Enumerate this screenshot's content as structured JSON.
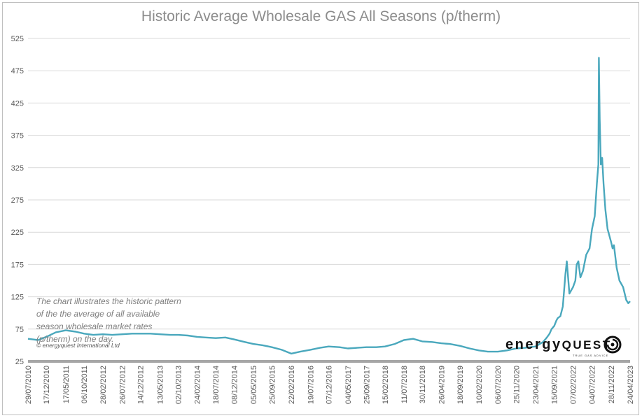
{
  "chart_data": {
    "type": "line",
    "title": "Historic Average Wholesale GAS All Seasons (p/therm)",
    "xlabel": "",
    "ylabel": "",
    "ylim": [
      25,
      525
    ],
    "y_ticks": [
      "25",
      "75",
      "125",
      "175",
      "225",
      "275",
      "325",
      "375",
      "425",
      "475",
      "525"
    ],
    "x_tick_labels": [
      "29/07/2010",
      "17/12/2010",
      "17/05/2011",
      "06/10/2011",
      "28/02/2012",
      "26/07/2012",
      "14/12/2012",
      "13/05/2013",
      "02/10/2013",
      "24/02/2014",
      "18/07/2014",
      "08/12/2014",
      "05/05/2015",
      "25/09/2015",
      "22/02/2016",
      "19/07/2016",
      "07/12/2016",
      "04/05/2017",
      "25/09/2017",
      "15/02/2018",
      "11/07/2018",
      "30/11/2018",
      "26/04/2019",
      "18/09/2019",
      "10/02/2020",
      "06/07/2020",
      "25/11/2020",
      "23/04/2021",
      "15/09/2021",
      "07/02/2022",
      "04/07/2022",
      "28/11/2022",
      "24/04/2023"
    ],
    "grid": true,
    "legend": "none",
    "series_color": "#4aa8bd",
    "x": [
      "2010-07-29",
      "2010-10-15",
      "2010-12-17",
      "2011-03-01",
      "2011-05-17",
      "2011-08-01",
      "2011-10-06",
      "2011-12-15",
      "2012-02-28",
      "2012-05-10",
      "2012-07-26",
      "2012-10-10",
      "2012-12-14",
      "2013-03-01",
      "2013-05-13",
      "2013-08-01",
      "2013-10-02",
      "2013-12-15",
      "2014-02-24",
      "2014-05-01",
      "2014-07-18",
      "2014-10-01",
      "2014-12-08",
      "2015-03-01",
      "2015-05-05",
      "2015-07-15",
      "2015-09-25",
      "2015-12-10",
      "2016-02-22",
      "2016-05-01",
      "2016-07-19",
      "2016-10-01",
      "2016-12-07",
      "2017-03-01",
      "2017-05-04",
      "2017-07-15",
      "2017-09-25",
      "2017-12-10",
      "2018-02-15",
      "2018-05-01",
      "2018-07-11",
      "2018-09-20",
      "2018-11-30",
      "2019-02-15",
      "2019-04-26",
      "2019-07-01",
      "2019-09-18",
      "2019-12-01",
      "2020-02-10",
      "2020-04-20",
      "2020-07-06",
      "2020-09-15",
      "2020-11-25",
      "2021-02-01",
      "2021-04-23",
      "2021-06-20",
      "2021-07-20",
      "2021-08-10",
      "2021-08-25",
      "2021-09-15",
      "2021-10-01",
      "2021-10-06",
      "2021-10-12",
      "2021-11-01",
      "2021-11-20",
      "2021-12-10",
      "2021-12-21",
      "2022-01-10",
      "2022-02-07",
      "2022-02-25",
      "2022-03-07",
      "2022-03-20",
      "2022-04-05",
      "2022-04-25",
      "2022-05-20",
      "2022-06-15",
      "2022-07-04",
      "2022-07-25",
      "2022-08-10",
      "2022-08-22",
      "2022-08-26",
      "2022-09-01",
      "2022-09-10",
      "2022-09-20",
      "2022-10-01",
      "2022-10-15",
      "2022-11-01",
      "2022-11-28",
      "2022-12-10",
      "2022-12-20",
      "2023-01-10",
      "2023-02-01",
      "2023-03-01",
      "2023-03-25",
      "2023-04-10",
      "2023-04-24"
    ],
    "values": [
      60,
      58,
      63,
      70,
      73,
      71,
      68,
      66,
      67,
      66,
      67,
      68,
      68,
      68,
      67,
      66,
      66,
      65,
      63,
      62,
      61,
      62,
      59,
      55,
      52,
      50,
      47,
      43,
      37,
      40,
      43,
      46,
      48,
      47,
      45,
      46,
      47,
      47,
      48,
      52,
      58,
      60,
      56,
      55,
      53,
      52,
      49,
      45,
      42,
      40,
      40,
      42,
      45,
      46,
      48,
      55,
      62,
      68,
      75,
      80,
      88,
      90,
      92,
      95,
      110,
      160,
      180,
      130,
      140,
      150,
      175,
      180,
      155,
      165,
      190,
      200,
      230,
      250,
      300,
      330,
      495,
      400,
      330,
      340,
      300,
      260,
      230,
      210,
      200,
      205,
      170,
      150,
      140,
      120,
      115,
      118
    ]
  },
  "annotation": {
    "lines": [
      "The chart illustrates the historic pattern",
      "of the the average of all available",
      "season wholesale market rates",
      "(p/therm) on the day."
    ],
    "copyright": "© energyquest International Ltd"
  },
  "brand": {
    "name_part1": "energy",
    "name_part2": "QUEST",
    "tagline": "TRUE GAS ADVICE",
    "logo_icon": "swirl-logo-icon"
  }
}
